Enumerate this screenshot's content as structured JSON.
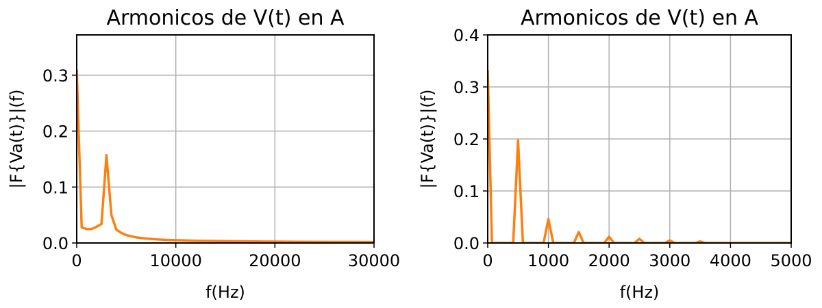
{
  "colors": {
    "line": "#ff7f0e",
    "grid": "#b0b0b0",
    "axis": "#000000"
  },
  "chart_data": [
    {
      "type": "line",
      "title": "Armonicos de V(t) en A",
      "xlabel": "f(Hz)",
      "ylabel": "|F{Va(t)}|(f)",
      "xlim": [
        0,
        30000
      ],
      "ylim": [
        0,
        0.372
      ],
      "grid": true,
      "xticks": [
        0,
        10000,
        20000,
        30000
      ],
      "yticks": [
        0.0,
        0.1,
        0.2,
        0.3
      ],
      "xtick_labels": [
        "0",
        "10000",
        "20000",
        "30000"
      ],
      "ytick_labels": [
        "0.0",
        "0.1",
        "0.2",
        "0.3"
      ],
      "series": [
        {
          "x": [
            0,
            500,
            1000,
            1500,
            2000,
            2500,
            3000,
            3500,
            4000,
            4500,
            5000,
            6000,
            7000,
            8000,
            9000,
            10000,
            12000,
            14000,
            16000,
            18000,
            20000,
            22000,
            24000,
            26000,
            28000,
            30000
          ],
          "y": [
            0.31,
            0.028,
            0.025,
            0.025,
            0.029,
            0.034,
            0.157,
            0.05,
            0.024,
            0.018,
            0.014,
            0.01,
            0.008,
            0.0065,
            0.0055,
            0.005,
            0.004,
            0.0035,
            0.003,
            0.0027,
            0.0024,
            0.0022,
            0.002,
            0.0019,
            0.0018,
            0.0017
          ]
        }
      ]
    },
    {
      "type": "line",
      "title": "Armonicos de V(t) en A",
      "xlabel": "f(Hz)",
      "ylabel": "|F{Va(t)}|(f)",
      "xlim": [
        0,
        5000
      ],
      "ylim": [
        0,
        0.4
      ],
      "grid": true,
      "xticks": [
        0,
        1000,
        2000,
        3000,
        4000,
        5000
      ],
      "yticks": [
        0.0,
        0.1,
        0.2,
        0.3,
        0.4
      ],
      "xtick_labels": [
        "0",
        "1000",
        "2000",
        "3000",
        "4000",
        "5000"
      ],
      "ytick_labels": [
        "0.0",
        "0.1",
        "0.2",
        "0.3",
        "0.4"
      ],
      "series": [
        {
          "x": [
            0,
            70,
            420,
            500,
            580,
            920,
            1000,
            1080,
            1420,
            1500,
            1580,
            1920,
            2000,
            2080,
            2420,
            2500,
            2580,
            2920,
            3000,
            3080,
            3420,
            3500,
            3580,
            5000
          ],
          "y": [
            0.332,
            0.0,
            0.0,
            0.197,
            0.0,
            0.0,
            0.046,
            0.0,
            0.0,
            0.021,
            0.0,
            0.0,
            0.012,
            0.0,
            0.0,
            0.008,
            0.0,
            0.0,
            0.005,
            0.0,
            0.0,
            0.003,
            0.0,
            0.0
          ]
        }
      ]
    }
  ]
}
